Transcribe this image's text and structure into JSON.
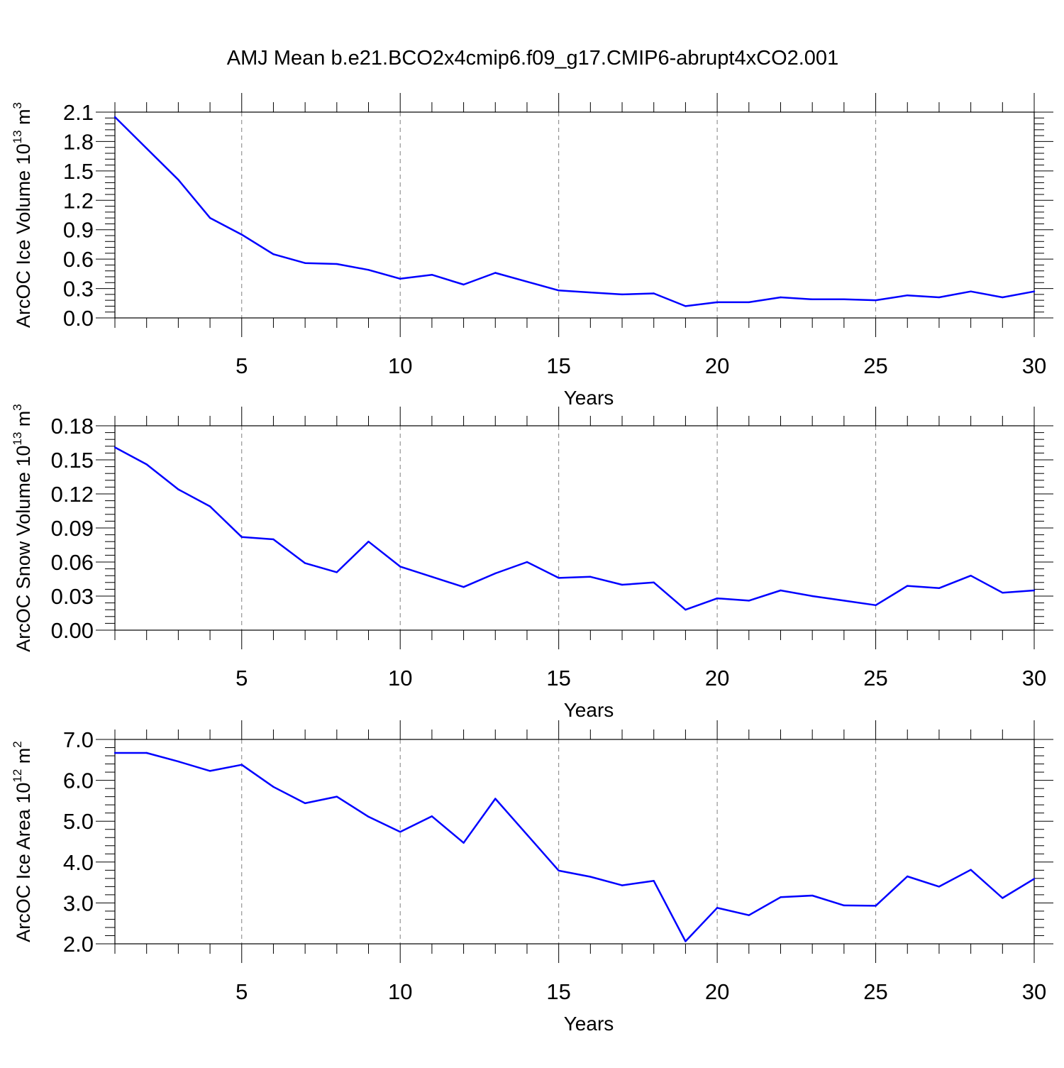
{
  "title": "AMJ Mean b.e21.BCO2x4cmip6.f09_g17.CMIP6-abrupt4xCO2.001",
  "colors": {
    "line": "#0000ff",
    "axis": "#000000",
    "grid": "#7f7f7f"
  },
  "chart_data": [
    {
      "type": "line",
      "title": "AMJ Mean b.e21.BCO2x4cmip6.f09_g17.CMIP6-abrupt4xCO2.001",
      "ylabel": "ArcOC Ice Volume 10",
      "ylabel_exp": "13",
      "ylabel_unit": " m",
      "ylabel_unit_exp": "3",
      "xlabel": "Years",
      "xlim": [
        1,
        30
      ],
      "ylim": [
        0,
        2.1
      ],
      "yticks": [
        0.0,
        0.3,
        0.6,
        0.9,
        1.2,
        1.5,
        1.8,
        2.1
      ],
      "ytick_labels": [
        "0.0",
        "0.3",
        "0.6",
        "0.9",
        "1.2",
        "1.5",
        "1.8",
        "2.1"
      ],
      "xticks": [
        5,
        10,
        15,
        20,
        25,
        30
      ],
      "xtick_labels": [
        "5",
        "10",
        "15",
        "20",
        "25",
        "30"
      ],
      "grid": "vertical-dashed",
      "x": [
        1,
        2,
        3,
        4,
        5,
        6,
        7,
        8,
        9,
        10,
        11,
        12,
        13,
        14,
        15,
        16,
        17,
        18,
        19,
        20,
        21,
        22,
        23,
        24,
        25,
        26,
        27,
        28,
        29,
        30
      ],
      "series": [
        {
          "values": [
            2.05,
            1.73,
            1.41,
            1.02,
            0.85,
            0.65,
            0.56,
            0.55,
            0.49,
            0.4,
            0.44,
            0.34,
            0.46,
            0.37,
            0.28,
            0.26,
            0.24,
            0.25,
            0.12,
            0.16,
            0.16,
            0.21,
            0.19,
            0.19,
            0.18,
            0.23,
            0.21,
            0.27,
            0.21,
            0.27
          ]
        }
      ]
    },
    {
      "type": "line",
      "ylabel": "ArcOC Snow Volume 10",
      "ylabel_exp": "13",
      "ylabel_unit": " m",
      "ylabel_unit_exp": "3",
      "xlabel": "Years",
      "xlim": [
        1,
        30
      ],
      "ylim": [
        0,
        0.18
      ],
      "yticks": [
        0.0,
        0.03,
        0.06,
        0.09,
        0.12,
        0.15,
        0.18
      ],
      "ytick_labels": [
        "0.00",
        "0.03",
        "0.06",
        "0.09",
        "0.12",
        "0.15",
        "0.18"
      ],
      "xticks": [
        5,
        10,
        15,
        20,
        25,
        30
      ],
      "xtick_labels": [
        "5",
        "10",
        "15",
        "20",
        "25",
        "30"
      ],
      "grid": "vertical-dashed",
      "x": [
        1,
        2,
        3,
        4,
        5,
        6,
        7,
        8,
        9,
        10,
        11,
        12,
        13,
        14,
        15,
        16,
        17,
        18,
        19,
        20,
        21,
        22,
        23,
        24,
        25,
        26,
        27,
        28,
        29,
        30
      ],
      "series": [
        {
          "values": [
            0.161,
            0.146,
            0.124,
            0.109,
            0.082,
            0.08,
            0.059,
            0.051,
            0.078,
            0.056,
            0.047,
            0.038,
            0.05,
            0.06,
            0.046,
            0.047,
            0.04,
            0.042,
            0.018,
            0.028,
            0.026,
            0.035,
            0.03,
            0.026,
            0.022,
            0.039,
            0.037,
            0.048,
            0.033,
            0.035
          ]
        }
      ]
    },
    {
      "type": "line",
      "ylabel": "ArcOC Ice Area 10",
      "ylabel_exp": "12",
      "ylabel_unit": " m",
      "ylabel_unit_exp": "2",
      "xlabel": "Years",
      "xlim": [
        1,
        30
      ],
      "ylim": [
        2.0,
        7.0
      ],
      "yticks": [
        2.0,
        3.0,
        4.0,
        5.0,
        6.0,
        7.0
      ],
      "ytick_labels": [
        "2.0",
        "3.0",
        "4.0",
        "5.0",
        "6.0",
        "7.0"
      ],
      "xticks": [
        5,
        10,
        15,
        20,
        25,
        30
      ],
      "xtick_labels": [
        "5",
        "10",
        "15",
        "20",
        "25",
        "30"
      ],
      "grid": "vertical-dashed",
      "x": [
        1,
        2,
        3,
        4,
        5,
        6,
        7,
        8,
        9,
        10,
        11,
        12,
        13,
        14,
        15,
        16,
        17,
        18,
        19,
        20,
        21,
        22,
        23,
        24,
        25,
        26,
        27,
        28,
        29,
        30
      ],
      "series": [
        {
          "values": [
            6.67,
            6.67,
            6.46,
            6.23,
            6.38,
            5.84,
            5.44,
            5.6,
            5.11,
            4.74,
            5.12,
            4.47,
            5.55,
            4.67,
            3.79,
            3.64,
            3.43,
            3.54,
            2.06,
            2.88,
            2.7,
            3.14,
            3.18,
            2.94,
            2.93,
            3.65,
            3.4,
            3.81,
            3.12,
            3.59
          ]
        }
      ]
    }
  ]
}
